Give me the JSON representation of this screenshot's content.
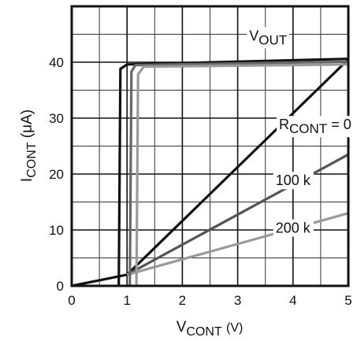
{
  "chart_data": {
    "type": "line",
    "title": "",
    "xlabel": {
      "main": "V",
      "sub": "CONT",
      "unit": "(V)"
    },
    "ylabel": {
      "main": "I",
      "sub": "CONT",
      "unit": "(μA)"
    },
    "xlim": [
      0,
      5
    ],
    "ylim": [
      0,
      50
    ],
    "x_major_ticks": [
      0,
      1,
      2,
      3,
      4,
      5
    ],
    "y_major_ticks": [
      0,
      10,
      20,
      30,
      40
    ],
    "x_tick_labels": [
      "0",
      "1",
      "2",
      "3",
      "4",
      "5"
    ],
    "y_tick_labels": [
      "0",
      "10",
      "20",
      "30",
      "40"
    ],
    "grid": true,
    "series": [
      {
        "color": "#111111",
        "x": [
          0,
          1,
          5
        ],
        "y": [
          0,
          2,
          40.5
        ]
      },
      {
        "color": "#555555",
        "x": [
          1,
          5
        ],
        "y": [
          2,
          23.5
        ]
      },
      {
        "color": "#999999",
        "x": [
          1,
          5
        ],
        "y": [
          2,
          13
        ]
      },
      {
        "color": "#111111",
        "x": [
          0.85,
          0.88,
          1.0,
          5
        ],
        "y": [
          0,
          38.8,
          39.6,
          40.6
        ]
      },
      {
        "color": "#666666",
        "x": [
          1.05,
          1.08,
          1.15,
          5
        ],
        "y": [
          0,
          38.3,
          39.5,
          40.1
        ]
      },
      {
        "color": "#9a9a9a",
        "x": [
          1.17,
          1.2,
          1.3,
          5
        ],
        "y": [
          0,
          37.8,
          39.2,
          39.6
        ]
      }
    ],
    "annotations": [
      {
        "main": "V",
        "sub": "OUT",
        "rest": "",
        "x": 3.55,
        "y": 43.9
      },
      {
        "main": "R",
        "sub": "CONT",
        "rest": " = 0",
        "x": 4.4,
        "y": 28
      },
      {
        "main": "100 k",
        "sub": "",
        "rest": "",
        "x": 4.0,
        "y": 18
      },
      {
        "main": "200 k",
        "sub": "",
        "rest": "",
        "x": 4.0,
        "y": 9.5
      }
    ]
  }
}
